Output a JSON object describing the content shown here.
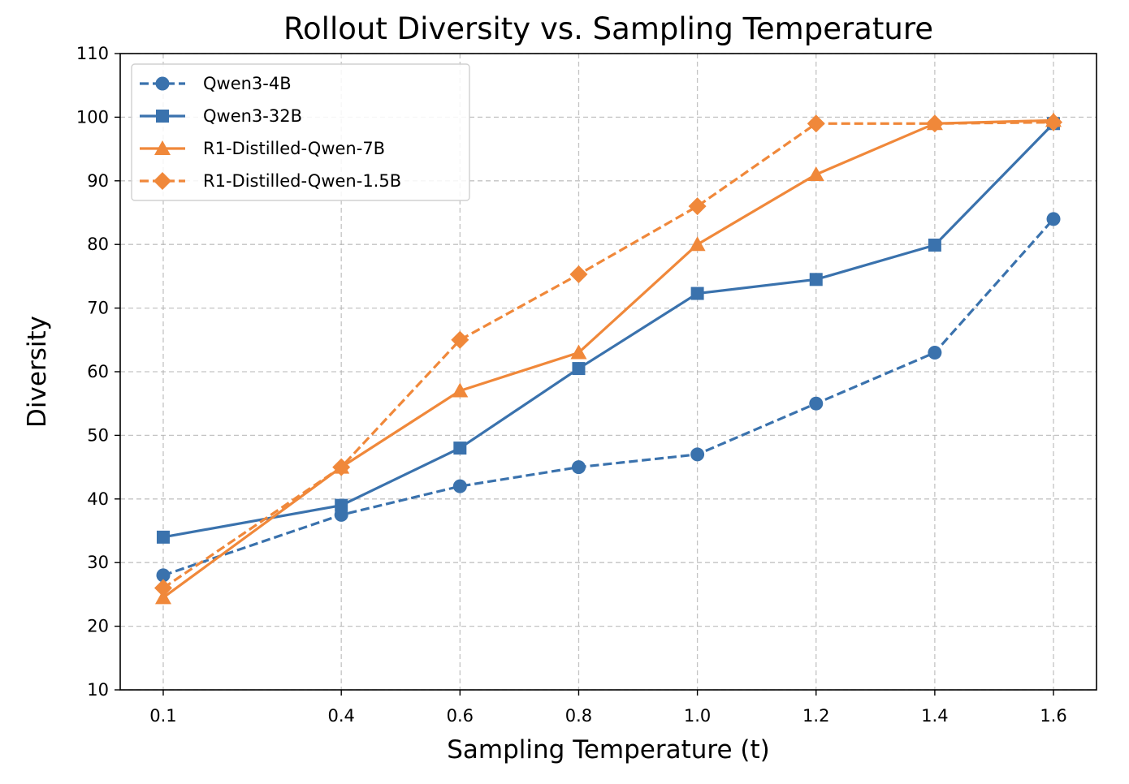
{
  "chart_data": {
    "type": "line",
    "title": "Rollout Diversity vs. Sampling Temperature",
    "xlabel": "Sampling Temperature (t)",
    "ylabel": "Diversity",
    "x": [
      0.1,
      0.4,
      0.6,
      0.8,
      1.0,
      1.2,
      1.4,
      1.6
    ],
    "x_tick_labels": [
      "0.1",
      "0.4",
      "0.6",
      "0.8",
      "1.0",
      "1.2",
      "1.4",
      "1.6"
    ],
    "y_ticks": [
      10,
      20,
      30,
      40,
      50,
      60,
      70,
      80,
      90,
      100,
      110
    ],
    "xlim": [
      0.0275,
      1.6725
    ],
    "ylim": [
      10,
      110
    ],
    "grid": true,
    "legend_position": "top-left",
    "series": [
      {
        "name": "Qwen3-4B",
        "color": "#3a72ad",
        "linestyle": "dashed",
        "marker": "circle",
        "values": [
          28,
          37.5,
          42,
          45,
          47,
          55,
          63,
          84
        ]
      },
      {
        "name": "Qwen3-32B",
        "color": "#3a72ad",
        "linestyle": "solid",
        "marker": "square",
        "values": [
          34,
          39,
          48,
          60.5,
          72.3,
          74.5,
          79.9,
          99
        ]
      },
      {
        "name": "R1-Distilled-Qwen-7B",
        "color": "#f0883a",
        "linestyle": "solid",
        "marker": "triangle",
        "values": [
          24.5,
          45,
          57,
          63,
          80,
          91,
          99,
          99.5
        ]
      },
      {
        "name": "R1-Distilled-Qwen-1.5B",
        "color": "#f0883a",
        "linestyle": "dashed",
        "marker": "diamond",
        "values": [
          26,
          45,
          65,
          75.3,
          86,
          99,
          99,
          99.2
        ]
      }
    ]
  }
}
